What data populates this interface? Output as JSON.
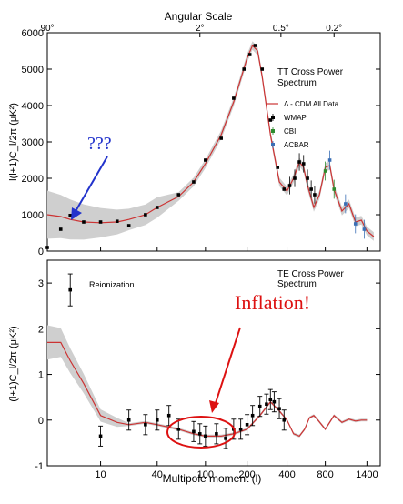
{
  "chart_data": [
    {
      "type": "line",
      "panel": "TT",
      "title": "TT Cross Power Spectrum",
      "title_lines": [
        "TT Cross Power",
        "Spectrum"
      ],
      "top_axis_label": "Angular Scale",
      "top_ticks": [
        "90°",
        "2°",
        "0.5°",
        "0.2°"
      ],
      "xlabel": "Multipole moment (l)",
      "ylabel": "l(l+1)C_l/2π (μK²)",
      "ylim": [
        0,
        6000
      ],
      "y_ticks": [
        "0",
        "1000",
        "2000",
        "3000",
        "4000",
        "5000",
        "6000"
      ],
      "x_scale": "compressed multipole",
      "legend": [
        "Λ - CDM All Data",
        "WMAP",
        "CBI",
        "ACBAR"
      ],
      "legend_colors": [
        "#cc3333",
        "#000000",
        "#2e8b2e",
        "#3b6fb5"
      ],
      "annotation": "???",
      "annotation_color": "#2233cc",
      "series": [
        {
          "name": "Λ - CDM All Data",
          "x": [
            2,
            3,
            4,
            6,
            10,
            15,
            20,
            30,
            40,
            60,
            80,
            100,
            130,
            160,
            200,
            220,
            240,
            260,
            300,
            350,
            400,
            450,
            500,
            540,
            580,
            650,
            720,
            800,
            850,
            900,
            1000,
            1100,
            1200,
            1300,
            1400,
            1500
          ],
          "y": [
            1000,
            950,
            870,
            800,
            780,
            800,
            870,
            1000,
            1200,
            1500,
            1900,
            2400,
            3200,
            4100,
            5300,
            5650,
            5500,
            4800,
            3200,
            1900,
            1650,
            2000,
            2450,
            2300,
            1800,
            1200,
            1550,
            2300,
            2350,
            1700,
            1100,
            1300,
            800,
            850,
            550,
            400
          ]
        },
        {
          "name": "WMAP",
          "x": [
            2,
            3,
            4,
            6,
            10,
            15,
            20,
            30,
            40,
            60,
            80,
            100,
            130,
            160,
            190,
            210,
            230,
            260,
            300,
            340,
            380,
            420,
            460,
            500,
            540,
            580,
            620,
            660
          ],
          "y": [
            100,
            600,
            980,
            800,
            800,
            820,
            700,
            1000,
            1200,
            1550,
            1900,
            2500,
            3100,
            4200,
            5000,
            5400,
            5650,
            5000,
            3600,
            2300,
            1700,
            1800,
            2000,
            2450,
            2400,
            2000,
            1700,
            1550
          ]
        },
        {
          "name": "CBI",
          "x": [
            800,
            900
          ],
          "y": [
            2200,
            1700
          ]
        },
        {
          "name": "ACBAR",
          "x": [
            850,
            1050,
            1200,
            1350
          ],
          "y": [
            2500,
            1300,
            750,
            600
          ]
        }
      ]
    },
    {
      "type": "line",
      "panel": "TE",
      "title": "TE Cross Power Spectrum",
      "title_lines": [
        "TE Cross Power",
        "Spectrum"
      ],
      "xlabel": "Multipole moment (l)",
      "ylabel": "(l+1)C_l/2π (μK²)",
      "ylim": [
        -1,
        3.5
      ],
      "y_ticks": [
        "-1",
        "0",
        "1",
        "2",
        "3"
      ],
      "x_ticks": [
        "10",
        "40",
        "100",
        "200",
        "400",
        "800",
        "1400"
      ],
      "annotations": [
        "Reionization",
        "Inflation!"
      ],
      "annotation_color": "#dd1111",
      "series": [
        {
          "name": "Λ - CDM",
          "x": [
            2,
            3,
            4,
            6,
            10,
            15,
            20,
            30,
            40,
            60,
            80,
            100,
            130,
            160,
            200,
            250,
            300,
            350,
            400,
            450,
            500,
            550,
            600,
            650,
            700,
            800,
            900,
            1000,
            1100,
            1200,
            1300,
            1400
          ],
          "y": [
            1.7,
            1.7,
            1.3,
            0.8,
            0.1,
            -0.05,
            -0.1,
            -0.05,
            -0.1,
            -0.2,
            -0.3,
            -0.35,
            -0.35,
            -0.3,
            -0.2,
            0.1,
            0.4,
            0.2,
            0.0,
            -0.3,
            -0.35,
            -0.2,
            0.05,
            0.1,
            0.0,
            -0.2,
            0.1,
            -0.05,
            0.02,
            -0.02,
            0.0,
            0.0
          ]
        },
        {
          "name": "WMAP",
          "x": [
            4,
            10,
            20,
            30,
            40,
            50,
            60,
            80,
            90,
            100,
            120,
            140,
            160,
            180,
            200,
            220,
            250,
            280,
            300,
            320,
            350,
            380
          ],
          "y": [
            2.85,
            -0.35,
            0.0,
            -0.1,
            0.0,
            0.1,
            -0.2,
            -0.25,
            -0.3,
            -0.35,
            -0.3,
            -0.4,
            -0.2,
            -0.2,
            -0.1,
            0.1,
            0.3,
            0.35,
            0.45,
            0.4,
            0.25,
            0.0
          ]
        }
      ]
    }
  ]
}
